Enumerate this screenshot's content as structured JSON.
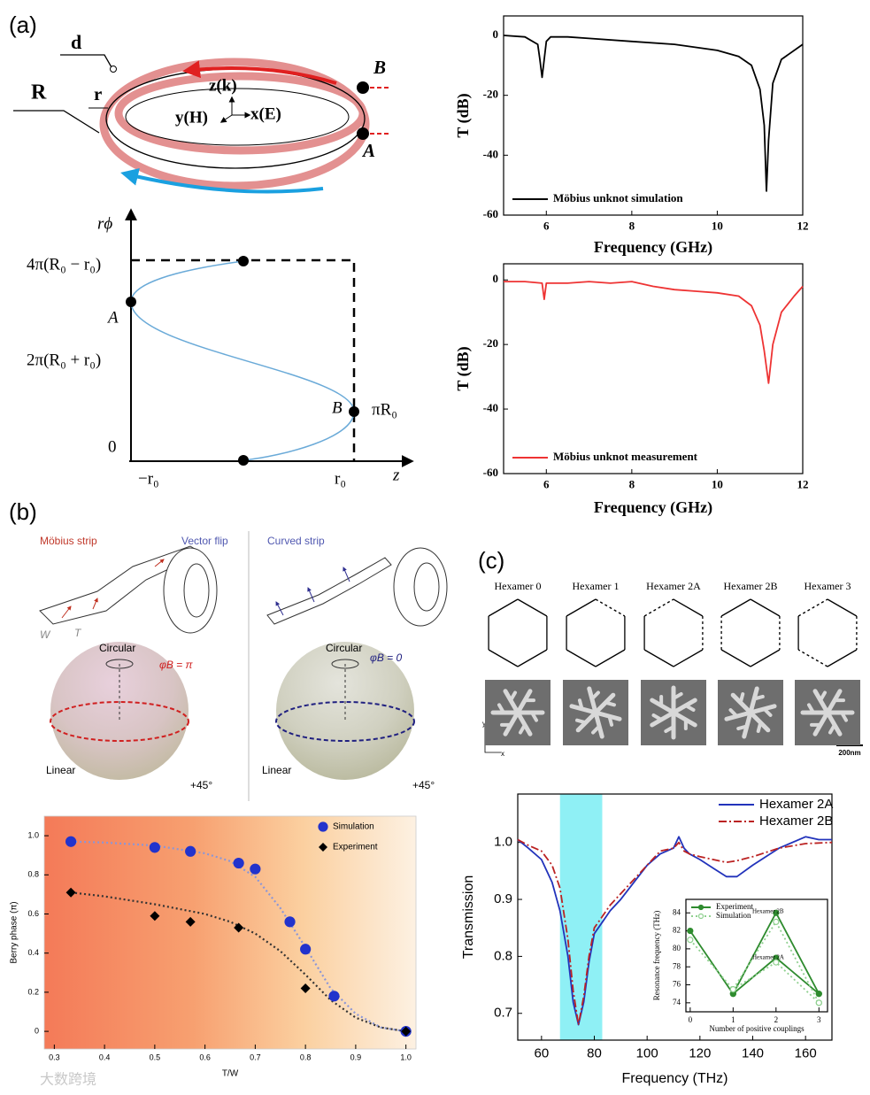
{
  "panel_labels": [
    "(a)",
    "(b)",
    "(c)"
  ],
  "ring_diagram": {
    "labels": [
      "d",
      "R",
      "r",
      "z(k)",
      "y(H)",
      "x(E)",
      "B",
      "A"
    ]
  },
  "phase_plot": {
    "labels": [
      "rϕ",
      "4π(R₀ − r₀)",
      "A",
      "2π(R₀ + r₀)",
      "B",
      "πR₀",
      "0",
      "−r₀",
      "r₀",
      "z"
    ]
  },
  "strip_diagram": {
    "labels": [
      "Möbius strip",
      "Vector flip",
      "Curved strip",
      "W",
      "T",
      "Circular",
      "φB = π",
      "Linear",
      "+45°",
      "Circular",
      "φB = 0",
      "Linear",
      "+45°"
    ]
  },
  "hexamer_diagram": {
    "titles": [
      "Hexamer 0",
      "Hexamer 1",
      "Hexamer 2A",
      "Hexamer 2B",
      "Hexamer 3"
    ],
    "axis_labels": [
      "y",
      "x"
    ],
    "scale_bar": "200nm"
  },
  "watermark": "大数跨境",
  "chart_data": [
    {
      "type": "line",
      "xlabel": "Frequency (GHz)",
      "ylabel": "T (dB)",
      "xlim": [
        5,
        12
      ],
      "ylim": [
        -60,
        6.5
      ],
      "xticks": [
        6,
        8,
        10,
        12
      ],
      "yticks": [
        0,
        -20,
        -40,
        -60
      ],
      "legend": "lower left",
      "series": [
        {
          "name": "Möbius unknot simulation",
          "color": "#000000",
          "style": "solid",
          "x": [
            5,
            5.5,
            5.8,
            5.85,
            5.9,
            5.95,
            6.0,
            6.1,
            6.5,
            7,
            8,
            9,
            10,
            10.5,
            10.8,
            11.0,
            11.1,
            11.15,
            11.2,
            11.3,
            11.5,
            12
          ],
          "values": [
            0,
            -0.5,
            -3,
            -8,
            -14,
            -8,
            -2,
            -0.5,
            -0.5,
            -1,
            -2,
            -3,
            -5,
            -7,
            -10,
            -18,
            -30,
            -52,
            -35,
            -16,
            -8,
            -3
          ]
        }
      ]
    },
    {
      "type": "line",
      "xlabel": "Frequency (GHz)",
      "ylabel": "T (dB)",
      "xlim": [
        5,
        12
      ],
      "ylim": [
        -60,
        5
      ],
      "xticks": [
        6,
        8,
        10,
        12
      ],
      "yticks": [
        0,
        -20,
        -40,
        -60
      ],
      "legend": "lower left",
      "series": [
        {
          "name": "Möbius unknot measurement",
          "color": "#ee3333",
          "style": "solid",
          "x": [
            5,
            5.5,
            5.9,
            5.95,
            6.0,
            6.5,
            7,
            7.5,
            8,
            8.5,
            9,
            9.5,
            10,
            10.5,
            10.8,
            11.0,
            11.1,
            11.2,
            11.3,
            11.5,
            11.8,
            12
          ],
          "values": [
            -0.5,
            -0.5,
            -1,
            -6,
            -1,
            -1,
            -0.5,
            -1,
            -0.5,
            -2,
            -3,
            -3.5,
            -4,
            -5,
            -8,
            -14,
            -22,
            -32,
            -20,
            -10,
            -5,
            -2
          ]
        }
      ]
    },
    {
      "type": "scatter",
      "xlabel": "T/W",
      "ylabel": "Berry phase (π)",
      "xlim": [
        0.28,
        1.02
      ],
      "ylim": [
        -0.09,
        1.1
      ],
      "xticks": [
        0.3,
        0.4,
        0.5,
        0.6,
        0.7,
        0.8,
        0.9,
        {
          "value": 1,
          "label": "1.0"
        }
      ],
      "yticks": [
        0,
        0.2,
        0.4,
        0.6,
        0.8,
        {
          "value": 1,
          "label": "1.0"
        }
      ],
      "legend": "upper right",
      "series": [
        {
          "name": "Simulation",
          "color": "#2233cc",
          "marker": "circle",
          "x": [
            0.333,
            0.5,
            0.571,
            0.667,
            0.7,
            0.769,
            0.8,
            0.857,
            1.0
          ],
          "values": [
            0.97,
            0.94,
            0.92,
            0.86,
            0.83,
            0.56,
            0.42,
            0.18,
            0
          ]
        },
        {
          "name": "Experiment",
          "color": "#000000",
          "marker": "diamond",
          "x": [
            0.333,
            0.5,
            0.571,
            0.667,
            0.8,
            1.0
          ],
          "values": [
            0.71,
            0.59,
            0.56,
            0.53,
            0.22,
            0
          ]
        },
        {
          "color": "#8a96d8",
          "style": "dotted",
          "x": [
            0.333,
            0.4,
            0.5,
            0.6,
            0.65,
            0.7,
            0.75,
            0.8,
            0.85,
            0.9,
            0.95,
            1.0
          ],
          "values": [
            0.97,
            0.965,
            0.95,
            0.91,
            0.87,
            0.79,
            0.63,
            0.43,
            0.22,
            0.09,
            0.02,
            0
          ]
        },
        {
          "color": "#333333",
          "style": "dotted",
          "x": [
            0.333,
            0.4,
            0.5,
            0.6,
            0.65,
            0.7,
            0.75,
            0.8,
            0.85,
            0.9,
            0.95,
            1.0
          ],
          "values": [
            0.71,
            0.69,
            0.65,
            0.6,
            0.56,
            0.5,
            0.41,
            0.29,
            0.16,
            0.07,
            0.02,
            0
          ]
        }
      ]
    },
    {
      "type": "line",
      "xlabel": "Frequency (THz)",
      "ylabel": "Transmission",
      "xlim": [
        51,
        170
      ],
      "ylim": [
        0.653,
        1.085
      ],
      "xticks": [
        60,
        80,
        100,
        120,
        140,
        160
      ],
      "yticks": [
        0.7,
        0.8,
        0.9,
        {
          "value": 1,
          "label": "1.0"
        }
      ],
      "legend": "upper right",
      "highlight_x": [
        67,
        83
      ],
      "highlight_color": "#8ff0f5",
      "series": [
        {
          "name": "Hexamer 2A",
          "color": "#2233bb",
          "style": "solid",
          "x": [
            51,
            55,
            60,
            64,
            67,
            70,
            72,
            74,
            76,
            78,
            80,
            83,
            86,
            90,
            95,
            100,
            105,
            110,
            112,
            114,
            116,
            120,
            125,
            130,
            134,
            140,
            150,
            160,
            165,
            170
          ],
          "values": [
            1.005,
            0.99,
            0.97,
            0.93,
            0.88,
            0.8,
            0.72,
            0.68,
            0.72,
            0.79,
            0.84,
            0.86,
            0.88,
            0.9,
            0.93,
            0.96,
            0.98,
            0.99,
            1.01,
            0.99,
            0.98,
            0.97,
            0.955,
            0.94,
            0.94,
            0.96,
            0.99,
            1.01,
            1.005,
            1.005
          ]
        },
        {
          "name": "Hexamer 2B",
          "color": "#bb2222",
          "style": "dashdot",
          "x": [
            51,
            55,
            60,
            64,
            67,
            70,
            72,
            74,
            76,
            78,
            80,
            83,
            86,
            90,
            95,
            100,
            105,
            110,
            112,
            114,
            116,
            120,
            125,
            130,
            134,
            140,
            150,
            160,
            170
          ],
          "values": [
            1.005,
            0.995,
            0.985,
            0.96,
            0.92,
            0.83,
            0.74,
            0.68,
            0.73,
            0.8,
            0.85,
            0.87,
            0.89,
            0.91,
            0.935,
            0.96,
            0.985,
            0.99,
            1.0,
            0.985,
            0.98,
            0.975,
            0.97,
            0.965,
            0.968,
            0.975,
            0.99,
            0.998,
            1.0
          ]
        }
      ]
    },
    {
      "type": "line",
      "xlabel": "Number of positive couplings",
      "ylabel": "Resonance frequency (THz)",
      "xlim": [
        -0.1,
        3.2
      ],
      "ylim": [
        73,
        85.5
      ],
      "xticks": [
        0,
        1,
        2,
        3
      ],
      "yticks": [
        74,
        76,
        78,
        80,
        82,
        84
      ],
      "legend": "upper left",
      "annotations": [
        "Hexamer 2B",
        "Hexamer 2A"
      ],
      "series": [
        {
          "name": "Experiment",
          "color": "#2e8b2e",
          "style": "solid",
          "marker": "circle",
          "x": [
            0,
            1,
            2,
            3,
            1,
            1,
            2,
            3
          ],
          "values": [
            82,
            75,
            84,
            75,
            null,
            75,
            79,
            75
          ]
        },
        {
          "name": "Simulation",
          "color": "#8fd08f",
          "style": "dotted",
          "marker": "open-circle",
          "x": [
            0,
            1,
            2,
            3,
            1,
            1,
            2,
            3
          ],
          "values": [
            81,
            75.5,
            83,
            74,
            null,
            75.5,
            78.5,
            74
          ]
        }
      ]
    }
  ]
}
